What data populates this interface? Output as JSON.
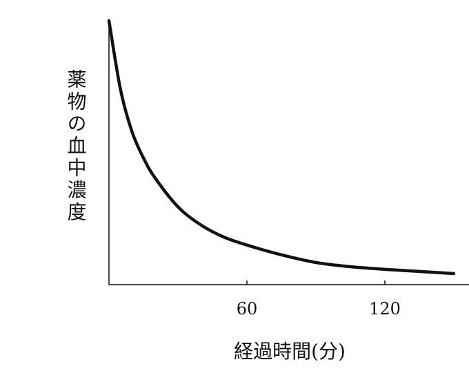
{
  "chart_data": {
    "type": "line",
    "x_label": "経過時間(分)",
    "y_label": "薬物の血中濃度",
    "x": [
      0,
      5,
      10,
      15,
      20,
      30,
      40,
      50,
      60,
      75,
      90,
      105,
      120,
      135,
      150
    ],
    "series": [
      {
        "color": "#111111",
        "values": [
          100,
          74,
          58,
          48,
          40.5,
          29.5,
          22.6,
          18,
          15,
          11.3,
          8.4,
          6.8,
          5.8,
          5,
          4.2
        ]
      }
    ],
    "xlim": [
      0,
      156
    ],
    "xticks": [
      60,
      120
    ],
    "ylim": [
      0,
      100
    ],
    "grid": false
  }
}
